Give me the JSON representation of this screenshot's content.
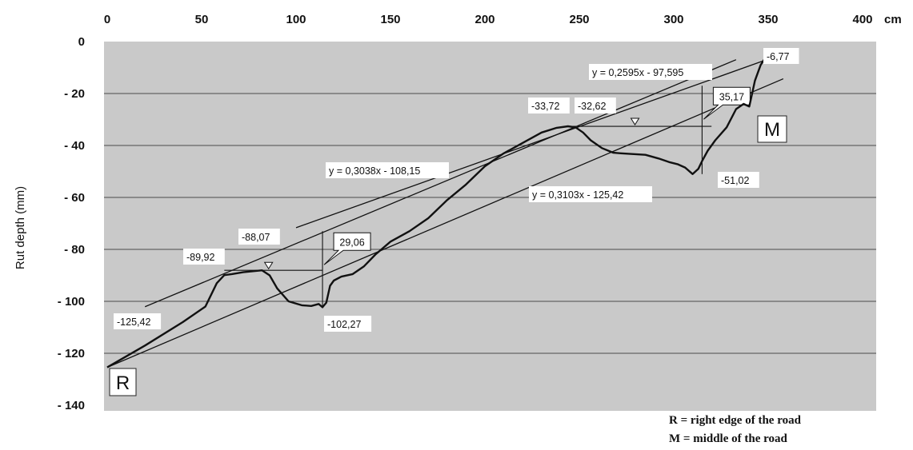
{
  "chart_data": {
    "type": "line",
    "x_unit": "cm",
    "ylabel": "Rut depth (mm)",
    "xlim": [
      0,
      400
    ],
    "ylim": [
      -140,
      0
    ],
    "x_ticks": [
      "0",
      "50",
      "100",
      "150",
      "200",
      "250",
      "300",
      "350",
      "400"
    ],
    "y_ticks": [
      "0",
      "- 20",
      "- 40",
      "- 60",
      "- 80",
      "- 100",
      "- 120",
      "- 140"
    ],
    "grid": "horizontal",
    "series": [
      {
        "values_x": [
          0,
          20,
          40,
          52,
          58,
          62,
          66,
          72,
          82,
          86,
          90,
          96,
          103,
          108,
          112,
          114,
          116,
          118,
          120,
          124,
          130,
          136,
          142,
          150,
          160,
          170,
          180,
          190,
          200,
          210,
          220,
          230,
          238,
          244,
          248,
          252,
          256,
          262,
          268,
          272,
          278,
          285,
          292,
          298,
          302,
          306,
          310,
          313,
          315,
          318,
          322,
          328,
          333,
          337,
          340,
          343,
          346,
          348
        ],
        "values_y": [
          -125.42,
          -117,
          -108,
          -102,
          -93,
          -89.92,
          -89.5,
          -88.8,
          -88.07,
          -90,
          -95,
          -100,
          -101.5,
          -101.8,
          -101,
          -102.27,
          -100.5,
          -94,
          -92,
          -90.5,
          -89.5,
          -86.5,
          -82,
          -77,
          -73,
          -68,
          -61,
          -55,
          -48,
          -43,
          -39,
          -35,
          -33.2,
          -32.62,
          -33,
          -35,
          -38,
          -41,
          -42.8,
          -43,
          -43.3,
          -43.6,
          -45,
          -46.5,
          -47.2,
          -48.5,
          -51.02,
          -49,
          -46,
          -42,
          -38,
          -33,
          -26,
          -24,
          -25,
          -15,
          -9,
          -6.77
        ]
      }
    ],
    "regression_lines": [
      {
        "label": "y = 0,3038x - 108,15",
        "x": [
          20,
          333
        ]
      },
      {
        "label": "y = 0,3103x - 125,42",
        "x": [
          0,
          358
        ]
      },
      {
        "label": "y = 0,2595x - 97,595",
        "x": [
          100,
          347
        ]
      }
    ],
    "water_levels": [
      {
        "y": -88.07,
        "x": [
          62,
          114
        ]
      },
      {
        "y": -32.62,
        "x": [
          244,
          320
        ]
      }
    ],
    "depth_markers": [
      {
        "x": 114,
        "y_top": -73,
        "y_bottom": -102.27,
        "label": "29,06"
      },
      {
        "x": 315,
        "y_top": -17,
        "y_bottom": -51.02,
        "label": "35,17"
      }
    ],
    "annotations": [
      "-125,42",
      "-89,92",
      "-88,07",
      "-102,27",
      "-33,72",
      "-32,62",
      "-51,02",
      "-6,77"
    ],
    "end_labels": [
      "R",
      "M"
    ],
    "legend_notes": [
      "R = right edge of the road",
      "M = middle of the road"
    ]
  }
}
